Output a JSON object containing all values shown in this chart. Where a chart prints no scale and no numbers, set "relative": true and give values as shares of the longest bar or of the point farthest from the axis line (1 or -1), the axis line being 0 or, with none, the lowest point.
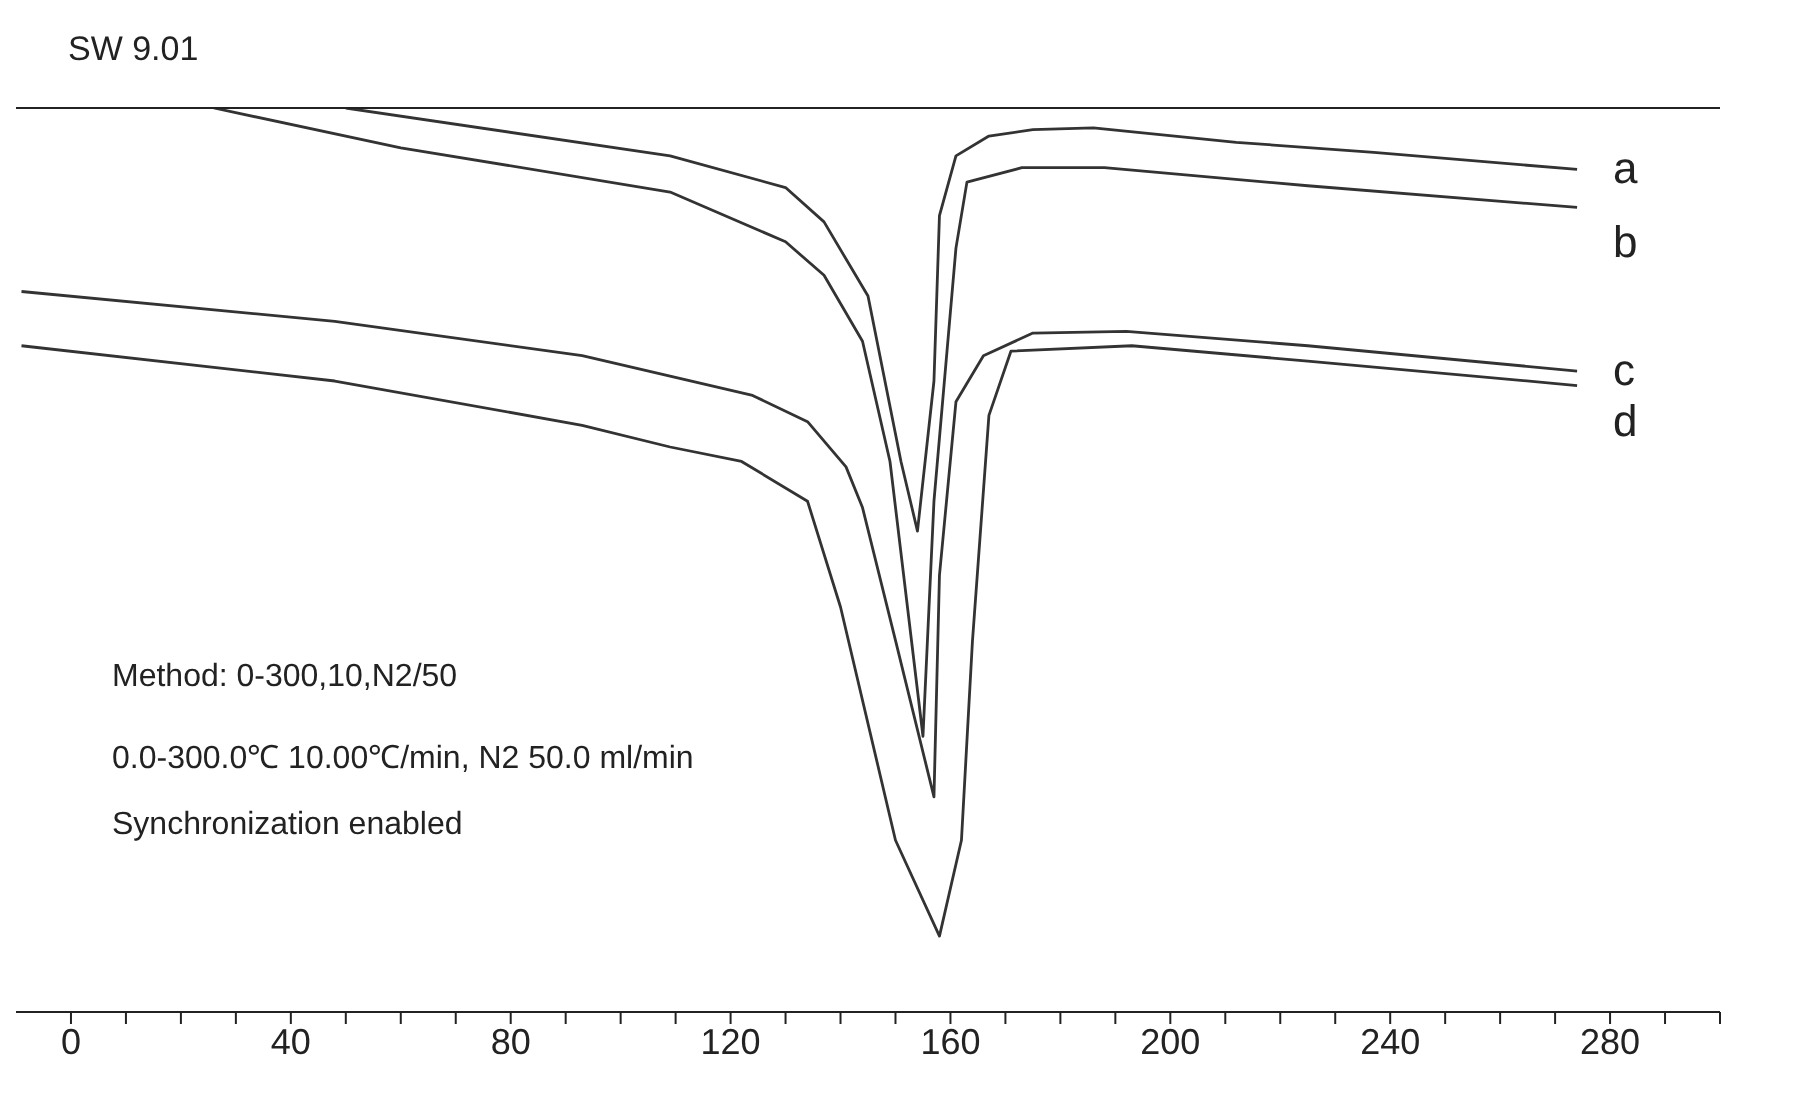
{
  "chart_data": {
    "type": "line",
    "relative": true,
    "xlim": [
      -10,
      300
    ],
    "xticks": [
      0,
      {
        "value": 10,
        "label": null
      },
      {
        "value": 20,
        "label": null
      },
      {
        "value": 30,
        "label": null
      },
      40,
      {
        "value": 50,
        "label": null
      },
      {
        "value": 60,
        "label": null
      },
      {
        "value": 70,
        "label": null
      },
      80,
      {
        "value": 90,
        "label": null
      },
      {
        "value": 100,
        "label": null
      },
      {
        "value": 110,
        "label": null
      },
      120,
      {
        "value": 130,
        "label": null
      },
      {
        "value": 140,
        "label": null
      },
      {
        "value": 150,
        "label": null
      },
      160,
      {
        "value": 170,
        "label": null
      },
      {
        "value": 180,
        "label": null
      },
      {
        "value": 190,
        "label": null
      },
      200,
      {
        "value": 210,
        "label": null
      },
      {
        "value": 220,
        "label": null
      },
      {
        "value": 230,
        "label": null
      },
      240,
      {
        "value": 250,
        "label": null
      },
      {
        "value": 260,
        "label": null
      },
      {
        "value": 270,
        "label": null
      },
      280,
      {
        "value": 290,
        "label": null
      },
      {
        "value": 300,
        "label": null
      }
    ],
    "tick_labels": "x",
    "grid": false,
    "legend": false,
    "marker": "none",
    "line_style": "solid",
    "series": [
      {
        "name": "a",
        "color": "#333333",
        "x": [
          50,
          109,
          130,
          137,
          145,
          151,
          154,
          157,
          158,
          161,
          167,
          175,
          186,
          212,
          237,
          274
        ],
        "values": [
          1.0,
          0.947,
          0.912,
          0.874,
          0.792,
          0.609,
          0.532,
          0.698,
          0.881,
          0.947,
          0.969,
          0.976,
          0.978,
          0.962,
          0.951,
          0.932
        ]
      },
      {
        "name": "b",
        "color": "#333333",
        "x": [
          26,
          60,
          109,
          130,
          137,
          144,
          149,
          155,
          157,
          161,
          163,
          173,
          188,
          225,
          274
        ],
        "values": [
          1.0,
          0.956,
          0.907,
          0.852,
          0.815,
          0.742,
          0.609,
          0.305,
          0.565,
          0.845,
          0.918,
          0.934,
          0.934,
          0.914,
          0.89
        ]
      },
      {
        "name": "c",
        "color": "#333333",
        "x": [
          -9,
          48,
          93,
          124,
          134,
          141,
          144,
          150,
          157,
          158,
          161,
          166,
          175,
          192,
          225,
          274
        ],
        "values": [
          0.797,
          0.764,
          0.726,
          0.682,
          0.653,
          0.603,
          0.558,
          0.411,
          0.238,
          0.483,
          0.675,
          0.726,
          0.751,
          0.753,
          0.737,
          0.709
        ]
      },
      {
        "name": "d",
        "color": "#333333",
        "x": [
          -9,
          48,
          93,
          109,
          122,
          134,
          140,
          150,
          158,
          162,
          164,
          167,
          171,
          193,
          225,
          274
        ],
        "values": [
          0.737,
          0.698,
          0.649,
          0.625,
          0.609,
          0.565,
          0.448,
          0.19,
          0.084,
          0.19,
          0.41,
          0.66,
          0.731,
          0.737,
          0.72,
          0.693
        ]
      }
    ],
    "annotations": [
      "SW 9.01",
      "Method: 0-300,10,N2/50",
      "0.0-300.0℃ 10.00℃/min, N2 50.0 ml/min",
      "Synchronization enabled"
    ]
  }
}
